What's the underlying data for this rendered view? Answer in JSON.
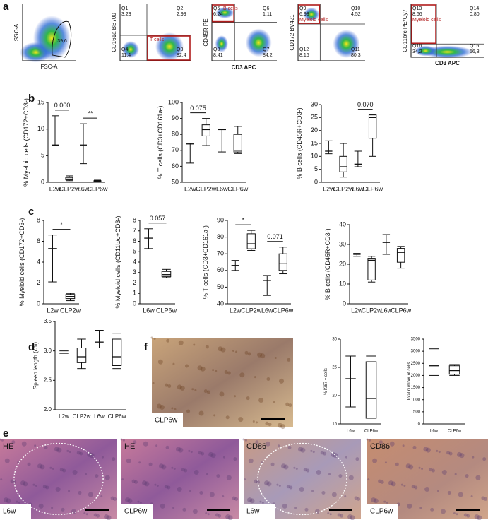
{
  "panel_labels": [
    "a",
    "b",
    "c",
    "d",
    "e",
    "f"
  ],
  "flow": {
    "shared_xlabel": "CD3 APC",
    "plots": [
      {
        "ylabel": "SSC-A",
        "xlabel": "FSC-A",
        "gate": "39,6"
      },
      {
        "ylabel": "CD161a BB700",
        "population": "T cells",
        "quadrants": [
          {
            "name": "Q1",
            "value": "3,23"
          },
          {
            "name": "Q2",
            "value": "2,99"
          },
          {
            "name": "Q4",
            "value": "11,4"
          },
          {
            "name": "Q3",
            "value": "82,4"
          }
        ]
      },
      {
        "ylabel": "CD45R PE",
        "population": "B cells",
        "quadrants": [
          {
            "name": "Q5",
            "value": "6,24"
          },
          {
            "name": "Q6",
            "value": "1,11"
          },
          {
            "name": "Q8",
            "value": "8,41"
          },
          {
            "name": "Q7",
            "value": "84,2"
          }
        ]
      },
      {
        "ylabel": "CD172 BV421",
        "population": "Myeloid cells",
        "quadrants": [
          {
            "name": "Q9",
            "value": "6,98"
          },
          {
            "name": "Q10",
            "value": "4,52"
          },
          {
            "name": "Q12",
            "value": "8,16"
          },
          {
            "name": "Q11",
            "value": "80,3"
          }
        ]
      },
      {
        "ylabel": "CD11b/c PE*Cy7",
        "xlabel": "CD3 APC",
        "population": "Myeloid cells",
        "quadrants": [
          {
            "name": "Q13",
            "value": "8,66"
          },
          {
            "name": "Q14",
            "value": "0,80"
          },
          {
            "name": "Q16",
            "value": "34,2"
          },
          {
            "name": "Q15",
            "value": "56,3"
          }
        ]
      }
    ]
  },
  "images": {
    "f": "CLP6w",
    "e": [
      {
        "stain": "HE",
        "group": "L6w"
      },
      {
        "stain": "HE",
        "group": "CLP6w"
      },
      {
        "stain": "CD86",
        "group": "L6w"
      },
      {
        "stain": "CD86",
        "group": "CLP6w"
      }
    ]
  },
  "chart_data": [
    {
      "type": "box",
      "ylabel": "% Myeloid cells (CD172+CD3-)",
      "categories": [
        "L2w",
        "CLP2w",
        "L6w",
        "CLP6w"
      ],
      "ylim": [
        0,
        15
      ],
      "yticks": [
        0,
        5,
        10,
        15
      ],
      "boxes": [
        {
          "min": 6.9,
          "median": 7,
          "max": 12.5
        },
        {
          "min": 0.3,
          "q1": 0.45,
          "median": 0.6,
          "q3": 0.9,
          "max": 1.2
        },
        {
          "min": 3.5,
          "median": 7,
          "max": 11
        },
        {
          "min": 0.1,
          "q1": 0.15,
          "median": 0.2,
          "q3": 0.3,
          "max": 0.4
        }
      ],
      "annotations": [
        {
          "text": "0.060",
          "between": [
            "L2w",
            "CLP2w"
          ]
        },
        {
          "text": "**",
          "between": [
            "L6w",
            "CLP6w"
          ]
        }
      ]
    },
    {
      "type": "box",
      "ylabel": "% T cells (CD3+CD161a-)",
      "categories": [
        "L2w",
        "CLP2w",
        "L6w",
        "CLP6w"
      ],
      "ylim": [
        50,
        100
      ],
      "yticks": [
        50,
        60,
        70,
        80,
        90,
        100
      ],
      "boxes": [
        {
          "min": 62,
          "median": 74,
          "max": 74.5
        },
        {
          "min": 73,
          "q1": 79,
          "median": 83,
          "q3": 86,
          "max": 90
        },
        {
          "min": 69,
          "median": 83,
          "max": 83
        },
        {
          "min": 68,
          "q1": 69,
          "median": 70,
          "q3": 80,
          "max": 85
        }
      ],
      "annotations": [
        {
          "text": "0.075",
          "between": [
            "L2w",
            "CLP2w"
          ]
        }
      ]
    },
    {
      "type": "box",
      "ylabel": "% B cells (CD45R+CD3-)",
      "categories": [
        "L2w",
        "CLP2w",
        "L6w",
        "CLP6w"
      ],
      "ylim": [
        0,
        30
      ],
      "yticks": [
        0,
        5,
        10,
        15,
        20,
        25,
        30
      ],
      "boxes": [
        {
          "min": 11,
          "median": 12,
          "max": 16
        },
        {
          "min": 2,
          "q1": 4,
          "median": 6,
          "q3": 10,
          "max": 15
        },
        {
          "min": 6,
          "median": 7,
          "max": 12
        },
        {
          "min": 10,
          "q1": 17,
          "median": 25,
          "q3": 26,
          "max": 26
        }
      ],
      "annotations": [
        {
          "text": "0.070",
          "between": [
            "L6w",
            "CLP6w"
          ]
        }
      ]
    },
    {
      "type": "box",
      "ylabel": "% Myeloid cells (CD172+CD3-)",
      "categories": [
        "L2w",
        "CLP2w"
      ],
      "ylim": [
        0,
        8
      ],
      "yticks": [
        0,
        2,
        4,
        6,
        8
      ],
      "boxes": [
        {
          "min": 2.1,
          "median": 5.3,
          "max": 6.6
        },
        {
          "min": 0.3,
          "q1": 0.5,
          "median": 0.7,
          "q3": 0.9,
          "max": 1.0
        }
      ],
      "annotations": [
        {
          "text": "*",
          "between": [
            "L2w",
            "CLP2w"
          ]
        }
      ]
    },
    {
      "type": "box",
      "ylabel": "% Myeloid cells (CD11b/c+CD3-)",
      "categories": [
        "L6w",
        "CLP6w"
      ],
      "ylim": [
        0,
        8
      ],
      "yticks": [
        0,
        1,
        2,
        3,
        4,
        5,
        6,
        7,
        8
      ],
      "boxes": [
        {
          "min": 5.3,
          "median": 6.3,
          "max": 7.2
        },
        {
          "min": 2.5,
          "q1": 2.6,
          "median": 2.8,
          "q3": 3.1,
          "max": 3.3
        }
      ],
      "annotations": [
        {
          "text": "0.057",
          "between": [
            "L6w",
            "CLP6w"
          ]
        }
      ]
    },
    {
      "type": "box",
      "ylabel": "% T cells (CD3+CD161a-)",
      "categories": [
        "L2w",
        "CLP2w",
        "L6w",
        "CLP6w"
      ],
      "ylim": [
        40,
        90
      ],
      "yticks": [
        40,
        50,
        60,
        70,
        80,
        90
      ],
      "boxes": [
        {
          "min": 60,
          "median": 63,
          "max": 66
        },
        {
          "min": 72,
          "q1": 73,
          "median": 76,
          "q3": 82,
          "max": 84
        },
        {
          "min": 45,
          "median": 54,
          "max": 57
        },
        {
          "min": 58,
          "q1": 60,
          "median": 64,
          "q3": 70,
          "max": 74
        }
      ],
      "annotations": [
        {
          "text": "*",
          "between": [
            "L2w",
            "CLP2w"
          ]
        },
        {
          "text": "0.071",
          "between": [
            "L6w",
            "CLP6w"
          ]
        }
      ]
    },
    {
      "type": "box",
      "ylabel": "% B cells (CD45R+CD3-)",
      "categories": [
        "L2w",
        "CLP2w",
        "L6w",
        "CLP6w"
      ],
      "ylim": [
        0,
        40
      ],
      "yticks": [
        0,
        10,
        20,
        30,
        40
      ],
      "boxes": [
        {
          "min": 24,
          "median": 25,
          "max": 25.5
        },
        {
          "min": 11,
          "q1": 12,
          "median": 22,
          "q3": 23,
          "max": 24
        },
        {
          "min": 25,
          "median": 31,
          "max": 35
        },
        {
          "min": 18,
          "q1": 21,
          "median": 26,
          "q3": 28,
          "max": 29
        }
      ],
      "annotations": []
    },
    {
      "type": "box",
      "ylabel": "Spleen length (cm)",
      "categories": [
        "L2w",
        "CLP2w",
        "L6w",
        "CLP6w"
      ],
      "ylim": [
        2,
        3.5
      ],
      "yticks": [
        {
          "value": 2,
          "label": "2.0"
        },
        {
          "value": 2.5,
          "label": "2.5"
        },
        {
          "value": 3,
          "label": "3.0"
        },
        {
          "value": 3.5,
          "label": "3.5"
        }
      ],
      "boxes": [
        {
          "min": 2.93,
          "median": 2.96,
          "max": 3.0
        },
        {
          "min": 2.7,
          "q1": 2.8,
          "median": 2.9,
          "q3": 3.05,
          "max": 3.2
        },
        {
          "min": 3.05,
          "median": 3.15,
          "max": 3.35
        },
        {
          "min": 2.7,
          "q1": 2.75,
          "median": 2.9,
          "q3": 3.2,
          "max": 3.3
        }
      ],
      "annotations": []
    },
    {
      "type": "box",
      "ylabel": "% Ki67 + cells",
      "categories": [
        "L6w",
        "CLP6w"
      ],
      "ylim": [
        15,
        30
      ],
      "yticks": [
        15,
        20,
        25,
        30
      ],
      "boxes": [
        {
          "min": 18,
          "median": 23,
          "max": 27
        },
        {
          "min": 16,
          "q1": 16,
          "median": 19.5,
          "q3": 26,
          "max": 27
        }
      ],
      "annotations": []
    },
    {
      "type": "box",
      "ylabel": "Total number of cells",
      "categories": [
        "L6w",
        "CLP6w"
      ],
      "ylim": [
        0,
        3500
      ],
      "yticks": [
        0,
        500,
        1000,
        1500,
        2000,
        2500,
        3000,
        3500
      ],
      "boxes": [
        {
          "min": 2000,
          "median": 2400,
          "max": 3100
        },
        {
          "min": 2000,
          "q1": 2050,
          "median": 2200,
          "q3": 2400,
          "max": 2450
        }
      ],
      "annotations": []
    }
  ]
}
